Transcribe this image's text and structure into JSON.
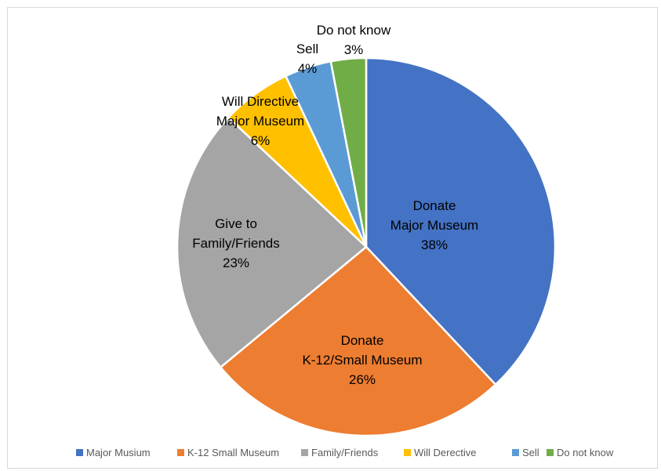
{
  "chart_data": {
    "type": "pie",
    "categories": [
      "Major Musium",
      "K-12 Small Museum",
      "Family/Friends",
      "Will Derective",
      "Sell",
      "Do not know"
    ],
    "values": [
      38,
      26,
      23,
      6,
      4,
      3
    ],
    "slice_labels": [
      [
        "Donate",
        "Major Museum",
        "38%"
      ],
      [
        "Donate",
        "K-12/Small Museum",
        "26%"
      ],
      [
        "Give to",
        "Family/Friends",
        "23%"
      ],
      [
        "Will Directive",
        "Major Museum",
        "6%"
      ],
      [
        "Sell",
        "4%"
      ],
      [
        "Do not know",
        "3%"
      ]
    ],
    "colors": [
      "#4472c4",
      "#ed7d31",
      "#a5a5a5",
      "#ffc000",
      "#5b9bd5",
      "#70ad47"
    ],
    "start": "12 o'clock",
    "direction": "clockwise",
    "legend_position": "bottom"
  }
}
